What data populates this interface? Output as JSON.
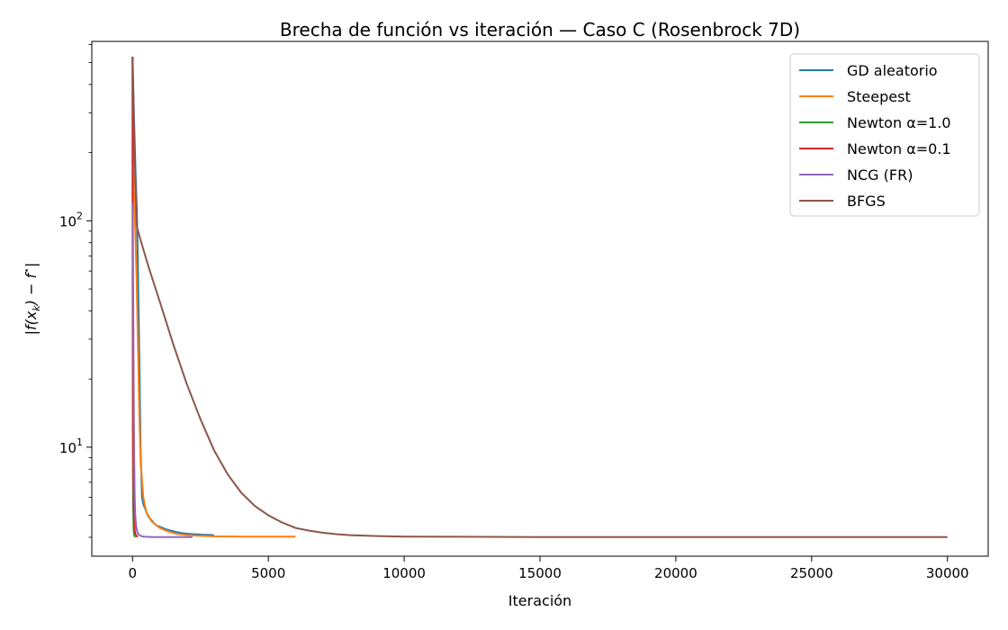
{
  "chart_data": {
    "type": "line",
    "title": "Brecha de función vs iteración — Caso C (Rosenbrock 7D)",
    "xlabel": "Iteración",
    "ylabel_parts": {
      "open": "|f(x",
      "sub": "k",
      "mid": ") − f",
      "sup": "⋆",
      "close": "|"
    },
    "yscale": "log",
    "xlim": [
      -1500,
      31500
    ],
    "ylim": [
      3.3,
      620
    ],
    "x_ticks": [
      0,
      5000,
      10000,
      15000,
      20000,
      25000,
      30000
    ],
    "x_tick_labels": [
      "0",
      "5000",
      "10000",
      "15000",
      "20000",
      "25000",
      "30000"
    ],
    "y_major_ticks": [
      {
        "value": 10,
        "base": "10",
        "exp": "1"
      },
      {
        "value": 100,
        "base": "10",
        "exp": "2"
      }
    ],
    "y_minor_ticks": [
      4,
      5,
      6,
      7,
      8,
      9,
      20,
      30,
      40,
      50,
      60,
      70,
      80,
      90,
      200,
      300,
      400,
      500,
      600
    ],
    "grid": false,
    "legend_position": "top-right",
    "series": [
      {
        "name": "GD aleatorio",
        "color": "#1f77b4",
        "x": [
          0,
          20,
          50,
          80,
          120,
          160,
          200,
          250,
          300,
          350,
          400,
          450,
          500,
          600,
          700,
          800,
          900,
          1000,
          1200,
          1400,
          1600,
          1800,
          2000,
          2200,
          2400,
          2600,
          2800,
          3000
        ],
        "y": [
          530,
          420,
          300,
          220,
          150,
          110,
          60,
          25,
          9.5,
          6.0,
          5.6,
          5.4,
          5.2,
          4.9,
          4.75,
          4.6,
          4.5,
          4.45,
          4.35,
          4.28,
          4.22,
          4.18,
          4.15,
          4.13,
          4.12,
          4.1,
          4.1,
          4.08
        ]
      },
      {
        "name": "Steepest",
        "color": "#ff7f0e",
        "x": [
          0,
          20,
          50,
          100,
          150,
          200,
          250,
          300,
          400,
          500,
          700,
          1000,
          1300,
          1600,
          2000,
          2500,
          3000,
          4000,
          5000,
          6000
        ],
        "y": [
          530,
          250,
          140,
          90,
          55,
          28,
          14,
          8.5,
          6.0,
          5.2,
          4.7,
          4.4,
          4.25,
          4.15,
          4.09,
          4.06,
          4.04,
          4.03,
          4.03,
          4.03
        ]
      },
      {
        "name": "Newton α=1.0",
        "color": "#2ca02c",
        "x": [
          0,
          5,
          10,
          20,
          40,
          60,
          80,
          100
        ],
        "y": [
          530,
          60,
          12,
          5.5,
          4.3,
          4.1,
          4.03,
          4.0
        ]
      },
      {
        "name": "Newton α=0.1",
        "color": "#d62728",
        "x": [
          0,
          5,
          10,
          20,
          40,
          60,
          80,
          100,
          150,
          200
        ],
        "y": [
          530,
          120,
          30,
          10,
          5.5,
          4.6,
          4.3,
          4.15,
          4.05,
          4.02
        ]
      },
      {
        "name": "NCG (FR)",
        "color": "#9467bd",
        "x": [
          0,
          10,
          20,
          40,
          60,
          80,
          100,
          130,
          160,
          200,
          250,
          300,
          400,
          500,
          700,
          1000,
          1500,
          2200
        ],
        "y": [
          120,
          110,
          60,
          20,
          9.0,
          6.0,
          5.0,
          4.5,
          4.3,
          4.15,
          4.1,
          4.06,
          4.03,
          4.02,
          4.01,
          4.01,
          4.01,
          4.01
        ]
      },
      {
        "name": "BFGS",
        "color": "#8c564b",
        "x": [
          0,
          50,
          150,
          300,
          600,
          1000,
          1500,
          2000,
          2500,
          3000,
          3500,
          4000,
          4500,
          5000,
          5500,
          6000,
          6500,
          7000,
          7500,
          8000,
          9000,
          10000,
          12000,
          15000,
          20000,
          25000,
          30000
        ],
        "y": [
          530,
          260,
          95,
          82,
          62,
          44,
          28.5,
          19.0,
          13.3,
          9.7,
          7.6,
          6.3,
          5.5,
          5.0,
          4.65,
          4.4,
          4.28,
          4.19,
          4.13,
          4.09,
          4.05,
          4.03,
          4.02,
          4.01,
          4.01,
          4.01,
          4.01
        ]
      }
    ]
  }
}
